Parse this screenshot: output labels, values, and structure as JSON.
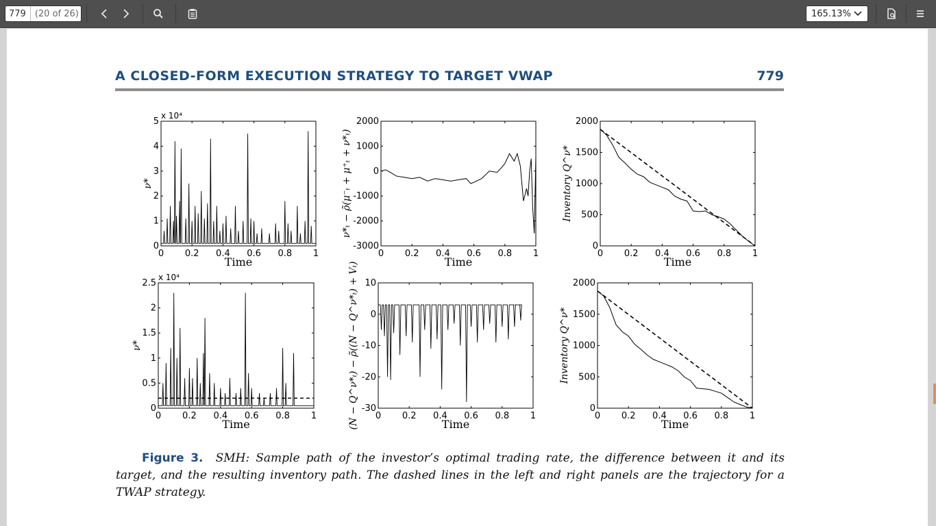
{
  "toolbar": {
    "page_number": "779",
    "page_of": "(20 of 26)",
    "zoom": "165.13%",
    "icons": [
      "chevron-left-icon",
      "chevron-right-icon",
      "search-icon",
      "clipboard-icon",
      "document-icon",
      "menu-icon"
    ]
  },
  "header": {
    "title": "A CLOSED-FORM EXECUTION STRATEGY TO TARGET VWAP",
    "page": "779"
  },
  "caption": {
    "label": "Figure 3.",
    "text": "SMH: Sample path of the investor’s optimal trading rate, the difference between it and its target, and the resulting inventory path. The dashed lines in the left and right panels are the trajectory for a TWAP strategy."
  },
  "chart_data": [
    {
      "type": "line",
      "panel": "top-left",
      "xlabel": "Time",
      "ylabel": "ν*",
      "exponent": "x 10⁴",
      "xlim": [
        0,
        1
      ],
      "ylim": [
        0,
        5
      ],
      "xticks": [
        "0",
        "0.2",
        "0.4",
        "0.6",
        "0.8",
        "1"
      ],
      "yticks": [
        "0",
        "1",
        "2",
        "3",
        "4",
        "5"
      ],
      "spikes": [
        [
          0.02,
          0.6
        ],
        [
          0.04,
          1.1
        ],
        [
          0.06,
          1.6
        ],
        [
          0.08,
          1.0
        ],
        [
          0.09,
          4.2
        ],
        [
          0.1,
          1.2
        ],
        [
          0.12,
          1.8
        ],
        [
          0.13,
          3.9
        ],
        [
          0.16,
          1.1
        ],
        [
          0.18,
          2.5
        ],
        [
          0.2,
          1.0
        ],
        [
          0.22,
          1.6
        ],
        [
          0.24,
          1.3
        ],
        [
          0.26,
          2.2
        ],
        [
          0.28,
          1.1
        ],
        [
          0.3,
          1.7
        ],
        [
          0.32,
          4.3
        ],
        [
          0.34,
          1.0
        ],
        [
          0.36,
          1.6
        ],
        [
          0.38,
          0.6
        ],
        [
          0.4,
          0.9
        ],
        [
          0.42,
          1.2
        ],
        [
          0.45,
          0.7
        ],
        [
          0.48,
          1.6
        ],
        [
          0.5,
          0.6
        ],
        [
          0.53,
          1.0
        ],
        [
          0.56,
          4.5
        ],
        [
          0.58,
          1.1
        ],
        [
          0.6,
          1.0
        ],
        [
          0.62,
          0.5
        ],
        [
          0.65,
          0.7
        ],
        [
          0.7,
          0.5
        ],
        [
          0.74,
          0.9
        ],
        [
          0.76,
          0.6
        ],
        [
          0.8,
          1.8
        ],
        [
          0.82,
          0.9
        ],
        [
          0.84,
          0.6
        ],
        [
          0.88,
          1.6
        ],
        [
          0.9,
          0.5
        ],
        [
          0.93,
          1.0
        ],
        [
          0.95,
          4.6
        ],
        [
          0.97,
          0.8
        ]
      ],
      "baseline": 0.1
    },
    {
      "type": "line",
      "panel": "top-middle",
      "xlabel": "Time",
      "ylabel": "ν*ₜ − ρ̃(μ⁻ₜ + μ⁺ₜ + ν*ₜ)",
      "xlim": [
        0,
        1
      ],
      "ylim": [
        -3000,
        2000
      ],
      "xticks": [
        "0",
        "0.2",
        "0.4",
        "0.6",
        "0.8",
        "1"
      ],
      "yticks": [
        "-3000",
        "-2000",
        "-1000",
        "0",
        "1000",
        "2000"
      ],
      "x": [
        0,
        0.03,
        0.06,
        0.1,
        0.15,
        0.2,
        0.25,
        0.3,
        0.35,
        0.4,
        0.45,
        0.5,
        0.55,
        0.58,
        0.6,
        0.65,
        0.7,
        0.75,
        0.78,
        0.8,
        0.83,
        0.86,
        0.88,
        0.9,
        0.92,
        0.94,
        0.95,
        0.96,
        0.97,
        0.98,
        0.99,
        1.0
      ],
      "y": [
        0,
        50,
        -50,
        -200,
        -250,
        -300,
        -250,
        -400,
        -300,
        -350,
        -400,
        -350,
        -300,
        -500,
        -450,
        -300,
        0,
        -50,
        150,
        300,
        700,
        400,
        700,
        200,
        -1200,
        -700,
        -1000,
        0,
        500,
        -1500,
        -2500,
        600
      ]
    },
    {
      "type": "line",
      "panel": "top-right",
      "xlabel": "Time",
      "ylabel": "Inventory Q^ν*",
      "xlim": [
        0,
        1
      ],
      "ylim": [
        0,
        2000
      ],
      "xticks": [
        "0",
        "0.2",
        "0.4",
        "0.6",
        "0.8",
        "1"
      ],
      "yticks": [
        "0",
        "500",
        "1000",
        "1500",
        "2000"
      ],
      "series": [
        {
          "style": "solid",
          "x": [
            0,
            0.04,
            0.08,
            0.12,
            0.16,
            0.2,
            0.24,
            0.28,
            0.32,
            0.36,
            0.4,
            0.44,
            0.48,
            0.52,
            0.56,
            0.6,
            0.64,
            0.68,
            0.72,
            0.76,
            0.8,
            0.84,
            0.88,
            0.92,
            0.96,
            1.0
          ],
          "y": [
            1870,
            1780,
            1620,
            1420,
            1330,
            1230,
            1150,
            1110,
            1020,
            980,
            940,
            900,
            800,
            750,
            720,
            560,
            550,
            560,
            500,
            470,
            430,
            350,
            250,
            150,
            70,
            0
          ]
        },
        {
          "style": "dashed",
          "x": [
            0,
            1
          ],
          "y": [
            1870,
            0
          ]
        }
      ]
    },
    {
      "type": "line",
      "panel": "bottom-left",
      "xlabel": "Time",
      "ylabel": "ν*",
      "exponent": "x 10⁴",
      "xlim": [
        0,
        1
      ],
      "ylim": [
        0,
        2.5
      ],
      "xticks": [
        "0",
        "0.2",
        "0.4",
        "0.6",
        "0.8",
        "1"
      ],
      "yticks": [
        "0",
        "0.5",
        "1",
        "1.5",
        "2",
        "2.5"
      ],
      "spikes": [
        [
          0.03,
          0.5
        ],
        [
          0.05,
          0.9
        ],
        [
          0.08,
          1.2
        ],
        [
          0.1,
          2.3
        ],
        [
          0.12,
          1.0
        ],
        [
          0.14,
          1.6
        ],
        [
          0.17,
          0.6
        ],
        [
          0.2,
          0.8
        ],
        [
          0.22,
          0.6
        ],
        [
          0.25,
          1.0
        ],
        [
          0.27,
          0.5
        ],
        [
          0.29,
          1.1
        ],
        [
          0.3,
          1.8
        ],
        [
          0.33,
          0.7
        ],
        [
          0.36,
          0.5
        ],
        [
          0.4,
          0.4
        ],
        [
          0.43,
          0.3
        ],
        [
          0.46,
          0.6
        ],
        [
          0.5,
          0.3
        ],
        [
          0.53,
          0.4
        ],
        [
          0.56,
          2.3
        ],
        [
          0.58,
          0.7
        ],
        [
          0.6,
          0.4
        ],
        [
          0.65,
          0.3
        ],
        [
          0.68,
          0.2
        ],
        [
          0.72,
          0.3
        ],
        [
          0.76,
          0.4
        ],
        [
          0.8,
          1.2
        ],
        [
          0.82,
          0.5
        ],
        [
          0.87,
          1.1
        ]
      ],
      "dashed_level": 0.2,
      "baseline": 0.05
    },
    {
      "type": "line",
      "panel": "bottom-middle",
      "xlabel": "Time",
      "ylabel": "(N − Q^ν*ₜ) − ρ̃((N − Q^ν*ₜ) + Vₜ)",
      "xlim": [
        0,
        1
      ],
      "ylim": [
        -30,
        10
      ],
      "xticks": [
        "0",
        "0.2",
        "0.4",
        "0.6",
        "0.8",
        "1"
      ],
      "yticks": [
        "-30",
        "-20",
        "-10",
        "0",
        "10"
      ],
      "dips": [
        [
          0.02,
          -5
        ],
        [
          0.04,
          -7
        ],
        [
          0.06,
          -20
        ],
        [
          0.08,
          -21
        ],
        [
          0.1,
          -6
        ],
        [
          0.14,
          -13
        ],
        [
          0.18,
          -7
        ],
        [
          0.22,
          -9
        ],
        [
          0.27,
          -20
        ],
        [
          0.3,
          -5
        ],
        [
          0.34,
          -11
        ],
        [
          0.38,
          -8
        ],
        [
          0.41,
          -24
        ],
        [
          0.45,
          -5
        ],
        [
          0.49,
          -3
        ],
        [
          0.53,
          -10
        ],
        [
          0.57,
          -28
        ],
        [
          0.6,
          -4
        ],
        [
          0.64,
          -9
        ],
        [
          0.68,
          -5
        ],
        [
          0.72,
          -3
        ],
        [
          0.76,
          -9
        ],
        [
          0.8,
          -4
        ],
        [
          0.84,
          -8
        ],
        [
          0.88,
          -4
        ],
        [
          0.92,
          -2
        ]
      ],
      "top": 3
    },
    {
      "type": "line",
      "panel": "bottom-right",
      "xlabel": "Time",
      "ylabel": "Inventory Q^ν*",
      "xlim": [
        0,
        1
      ],
      "ylim": [
        0,
        2000
      ],
      "xticks": [
        "0",
        "0.2",
        "0.4",
        "0.6",
        "0.8",
        "1"
      ],
      "yticks": [
        "0",
        "500",
        "1000",
        "1500",
        "2000"
      ],
      "series": [
        {
          "style": "solid",
          "x": [
            0,
            0.04,
            0.08,
            0.12,
            0.16,
            0.2,
            0.24,
            0.28,
            0.32,
            0.36,
            0.4,
            0.44,
            0.48,
            0.52,
            0.56,
            0.6,
            0.64,
            0.68,
            0.72,
            0.76,
            0.8,
            0.84,
            0.88,
            0.92,
            0.96,
            1.0
          ],
          "y": [
            1870,
            1790,
            1600,
            1330,
            1220,
            1150,
            1020,
            940,
            850,
            780,
            740,
            700,
            660,
            600,
            500,
            440,
            320,
            310,
            300,
            270,
            240,
            170,
            100,
            60,
            20,
            0
          ]
        },
        {
          "style": "dashed",
          "x": [
            0,
            1
          ],
          "y": [
            1870,
            0
          ]
        }
      ]
    }
  ]
}
